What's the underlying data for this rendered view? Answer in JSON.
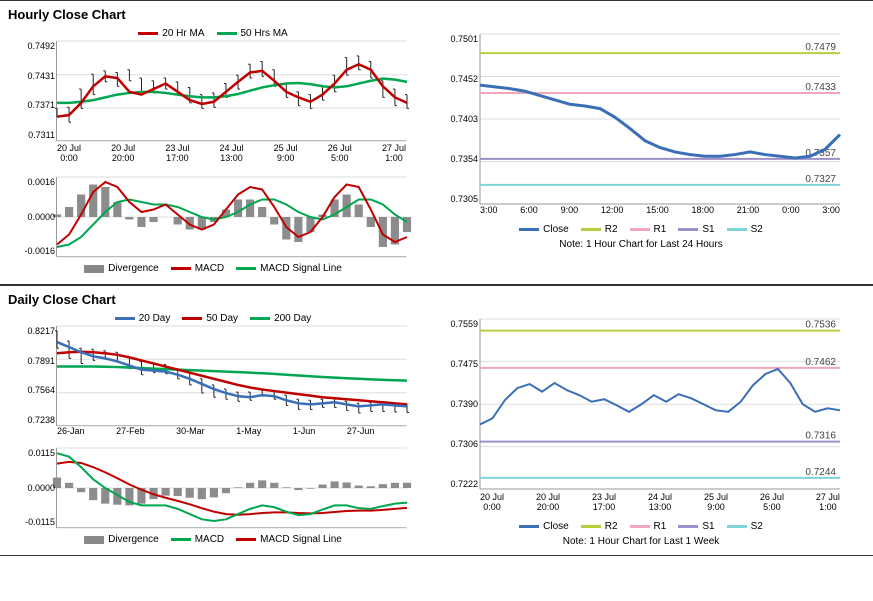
{
  "hourly": {
    "title": "Hourly Close Chart",
    "ma_chart": {
      "type": "line+candle",
      "ylim": [
        0.7311,
        0.7492
      ],
      "yticks": [
        "0.7492",
        "0.7431",
        "0.7371",
        "0.7311"
      ],
      "xticks": [
        "20 Jul\n0:00",
        "20 Jul\n20:00",
        "23 Jul\n17:00",
        "24 Jul\n13:00",
        "25 Jul\n9:00",
        "26 Jul\n5:00",
        "27 Jul\n1:00"
      ],
      "legend": [
        {
          "label": "20 Hr MA",
          "color": "#c00000",
          "type": "line"
        },
        {
          "label": "50 Hrs MA",
          "color": "#00a650",
          "type": "line"
        }
      ],
      "ma20": [
        0.7355,
        0.7358,
        0.738,
        0.741,
        0.7428,
        0.7425,
        0.74,
        0.7395,
        0.7405,
        0.7415,
        0.74,
        0.7385,
        0.7378,
        0.7382,
        0.74,
        0.7418,
        0.7435,
        0.7438,
        0.742,
        0.74,
        0.739,
        0.7382,
        0.7395,
        0.7415,
        0.744,
        0.745,
        0.744,
        0.741,
        0.739,
        0.738
      ],
      "ma50": [
        0.738,
        0.738,
        0.7382,
        0.7385,
        0.739,
        0.7395,
        0.7398,
        0.74,
        0.74,
        0.7398,
        0.7395,
        0.7392,
        0.739,
        0.739,
        0.7392,
        0.7396,
        0.7402,
        0.7408,
        0.7412,
        0.7415,
        0.7416,
        0.7414,
        0.741,
        0.7408,
        0.741,
        0.7415,
        0.742,
        0.7424,
        0.7422,
        0.7418
      ],
      "candles": [
        [
          0.7355,
          0.737
        ],
        [
          0.7345,
          0.7372
        ],
        [
          0.737,
          0.7405
        ],
        [
          0.7395,
          0.7432
        ],
        [
          0.7418,
          0.7438
        ],
        [
          0.741,
          0.7435
        ],
        [
          0.742,
          0.744
        ],
        [
          0.74,
          0.7425
        ],
        [
          0.7398,
          0.742
        ],
        [
          0.7405,
          0.7425
        ],
        [
          0.7395,
          0.7418
        ],
        [
          0.738,
          0.7408
        ],
        [
          0.737,
          0.7395
        ],
        [
          0.7372,
          0.7398
        ],
        [
          0.739,
          0.7415
        ],
        [
          0.7405,
          0.743
        ],
        [
          0.7425,
          0.745
        ],
        [
          0.7428,
          0.7455
        ],
        [
          0.741,
          0.744
        ],
        [
          0.739,
          0.7415
        ],
        [
          0.7375,
          0.74
        ],
        [
          0.737,
          0.7395
        ],
        [
          0.7385,
          0.7412
        ],
        [
          0.74,
          0.743
        ],
        [
          0.743,
          0.7462
        ],
        [
          0.744,
          0.7465
        ],
        [
          0.7425,
          0.7455
        ],
        [
          0.739,
          0.742
        ],
        [
          0.7375,
          0.7405
        ],
        [
          0.737,
          0.7395
        ]
      ],
      "candle_color": "#222",
      "grid_color": "#dcdcdc",
      "bg": "#ffffff"
    },
    "macd_chart": {
      "type": "macd",
      "ylim": [
        -0.0016,
        0.0016
      ],
      "yticks": [
        "0.0016",
        "0.0000",
        "-0.0016"
      ],
      "legend": [
        {
          "label": "Divergence",
          "color": "#888",
          "type": "bar"
        },
        {
          "label": "MACD",
          "color": "#c00000",
          "type": "line"
        },
        {
          "label": "MACD Signal Line",
          "color": "#00a650",
          "type": "line"
        }
      ],
      "macd": [
        -0.0011,
        -0.0007,
        0.0001,
        0.001,
        0.0014,
        0.0012,
        0.0006,
        0.0002,
        0.0003,
        0.0005,
        0.0001,
        -0.0003,
        -0.0005,
        -0.0003,
        0.0003,
        0.0009,
        0.0012,
        0.0011,
        0.0004,
        -0.0004,
        -0.0008,
        -0.0006,
        0.0,
        0.0008,
        0.0013,
        0.0012,
        0.0003,
        -0.0007,
        -0.001,
        -0.0008
      ],
      "signal": [
        -0.0012,
        -0.0011,
        -0.0008,
        -0.0003,
        0.0002,
        0.0006,
        0.0007,
        0.0006,
        0.0005,
        0.0005,
        0.0004,
        0.0002,
        0.0,
        -0.0001,
        0.0,
        0.0002,
        0.0005,
        0.0007,
        0.0007,
        0.0005,
        0.0002,
        0.0,
        -0.0001,
        0.0001,
        0.0004,
        0.0007,
        0.0007,
        0.0005,
        0.0001,
        -0.0002
      ],
      "divergence": [
        0.0001,
        0.0004,
        0.0009,
        0.0013,
        0.0012,
        0.0006,
        -0.0001,
        -0.0004,
        -0.0002,
        0.0,
        -0.0003,
        -0.0005,
        -0.0005,
        -0.0002,
        0.0003,
        0.0007,
        0.0007,
        0.0004,
        -0.0003,
        -0.0009,
        -0.001,
        -0.0006,
        0.0001,
        0.0007,
        0.0009,
        0.0005,
        -0.0004,
        -0.0012,
        -0.0011,
        -0.0006
      ],
      "bar_color": "#8c8c8c"
    },
    "pr_chart": {
      "type": "line+levels",
      "ylim": [
        0.7305,
        0.7501
      ],
      "yticks": [
        "0.7501",
        "0.7452",
        "0.7403",
        "0.7354",
        "0.7305"
      ],
      "xticks": [
        "3:00",
        "6:00",
        "9:00",
        "12:00",
        "15:00",
        "18:00",
        "21:00",
        "0:00",
        "3:00"
      ],
      "close": [
        0.7442,
        0.744,
        0.7438,
        0.7435,
        0.743,
        0.7425,
        0.742,
        0.7418,
        0.7415,
        0.7405,
        0.7392,
        0.7378,
        0.737,
        0.7365,
        0.7362,
        0.736,
        0.736,
        0.7362,
        0.7365,
        0.7362,
        0.736,
        0.7358,
        0.736,
        0.7368,
        0.7385
      ],
      "close_color": "#3a6fb7",
      "close_width": 3,
      "levels": [
        {
          "name": "R2",
          "value": 0.7479,
          "color": "#b5cf3f"
        },
        {
          "name": "R1",
          "value": 0.7433,
          "color": "#f0a8b8"
        },
        {
          "name": "S1",
          "value": 0.7357,
          "color": "#9e8fc7"
        },
        {
          "name": "S2",
          "value": 0.7327,
          "color": "#7fd4d9"
        }
      ],
      "legend": [
        {
          "label": "Close",
          "color": "#3a6fb7",
          "type": "line"
        },
        {
          "label": "R2",
          "color": "#b5cf3f",
          "type": "line"
        },
        {
          "label": "R1",
          "color": "#f0a8b8",
          "type": "line"
        },
        {
          "label": "S1",
          "color": "#9e8fc7",
          "type": "line"
        },
        {
          "label": "S2",
          "color": "#7fd4d9",
          "type": "line"
        }
      ],
      "note": "Note: 1 Hour Chart for Last 24 Hours"
    }
  },
  "daily": {
    "title": "Daily Close Chart",
    "ma_chart": {
      "type": "line+candle",
      "ylim": [
        0.7238,
        0.8217
      ],
      "yticks": [
        "0.8217",
        "0.7891",
        "0.7564",
        "0.7238"
      ],
      "xticks": [
        "26-Jan",
        "27-Feb",
        "30-Mar",
        "1-May",
        "1-Jun",
        "27-Jun",
        ""
      ],
      "legend": [
        {
          "label": "20 Day",
          "color": "#3a6fb7",
          "type": "line"
        },
        {
          "label": "50 Day",
          "color": "#c00000",
          "type": "line"
        },
        {
          "label": "200 Day",
          "color": "#00a650",
          "type": "line"
        }
      ],
      "ma20": [
        0.806,
        0.801,
        0.796,
        0.792,
        0.79,
        0.787,
        0.783,
        0.779,
        0.778,
        0.777,
        0.774,
        0.77,
        0.765,
        0.76,
        0.756,
        0.753,
        0.752,
        0.754,
        0.753,
        0.749,
        0.746,
        0.745,
        0.746,
        0.747,
        0.745,
        0.743,
        0.744,
        0.745,
        0.744,
        0.743
      ],
      "ma50": [
        0.795,
        0.796,
        0.7965,
        0.796,
        0.795,
        0.7935,
        0.791,
        0.788,
        0.785,
        0.782,
        0.779,
        0.776,
        0.773,
        0.77,
        0.767,
        0.764,
        0.7615,
        0.7595,
        0.758,
        0.7565,
        0.755,
        0.7535,
        0.752,
        0.751,
        0.75,
        0.749,
        0.748,
        0.747,
        0.746,
        0.745
      ],
      "ma200": [
        0.782,
        0.782,
        0.782,
        0.782,
        0.7818,
        0.7815,
        0.781,
        0.7805,
        0.78,
        0.7795,
        0.779,
        0.7785,
        0.778,
        0.7775,
        0.777,
        0.7765,
        0.776,
        0.7755,
        0.7748,
        0.774,
        0.7732,
        0.7725,
        0.7718,
        0.7712,
        0.7706,
        0.77,
        0.7695,
        0.769,
        0.7686,
        0.7682
      ],
      "candles": [
        [
          0.8,
          0.817
        ],
        [
          0.79,
          0.807
        ],
        [
          0.785,
          0.8
        ],
        [
          0.788,
          0.799
        ],
        [
          0.789,
          0.7975
        ],
        [
          0.787,
          0.796
        ],
        [
          0.78,
          0.792
        ],
        [
          0.774,
          0.787
        ],
        [
          0.776,
          0.786
        ],
        [
          0.775,
          0.784
        ],
        [
          0.77,
          0.78
        ],
        [
          0.764,
          0.776
        ],
        [
          0.756,
          0.77
        ],
        [
          0.752,
          0.764
        ],
        [
          0.75,
          0.76
        ],
        [
          0.748,
          0.757
        ],
        [
          0.749,
          0.757
        ],
        [
          0.753,
          0.76
        ],
        [
          0.75,
          0.758
        ],
        [
          0.744,
          0.754
        ],
        [
          0.74,
          0.75
        ],
        [
          0.74,
          0.749
        ],
        [
          0.742,
          0.75
        ],
        [
          0.742,
          0.751
        ],
        [
          0.739,
          0.748
        ],
        [
          0.7365,
          0.746
        ],
        [
          0.738,
          0.747
        ],
        [
          0.738,
          0.7475
        ],
        [
          0.7375,
          0.746
        ],
        [
          0.737,
          0.7455
        ]
      ]
    },
    "macd_chart": {
      "type": "macd",
      "ylim": [
        -0.0115,
        0.0115
      ],
      "yticks": [
        "0.0115",
        "0.0000",
        "-0.0115"
      ],
      "legend": [
        {
          "label": "Divergence",
          "color": "#888",
          "type": "bar"
        },
        {
          "label": "MACD",
          "color": "#00a650",
          "type": "line"
        },
        {
          "label": "MACD Signal Line",
          "color": "#c00000",
          "type": "line"
        }
      ],
      "macd": [
        0.01,
        0.009,
        0.006,
        0.0025,
        0.0,
        -0.002,
        -0.004,
        -0.005,
        -0.005,
        -0.005,
        -0.006,
        -0.0075,
        -0.009,
        -0.0095,
        -0.009,
        -0.0075,
        -0.006,
        -0.005,
        -0.0055,
        -0.0068,
        -0.0078,
        -0.0075,
        -0.0062,
        -0.005,
        -0.005,
        -0.0058,
        -0.006,
        -0.0052,
        -0.0045,
        -0.0042
      ],
      "signal": [
        0.007,
        0.0075,
        0.0072,
        0.006,
        0.0045,
        0.0028,
        0.001,
        -0.0005,
        -0.0018,
        -0.0028,
        -0.0037,
        -0.0047,
        -0.0058,
        -0.0068,
        -0.0075,
        -0.0077,
        -0.0075,
        -0.0072,
        -0.007,
        -0.007,
        -0.0072,
        -0.0073,
        -0.0072,
        -0.0069,
        -0.0066,
        -0.0065,
        -0.0065,
        -0.0063,
        -0.006,
        -0.0057
      ],
      "divergence": [
        0.003,
        0.0015,
        -0.0012,
        -0.0035,
        -0.0045,
        -0.0048,
        -0.005,
        -0.0045,
        -0.0032,
        -0.0022,
        -0.0023,
        -0.0028,
        -0.0032,
        -0.0027,
        -0.0015,
        0.0002,
        0.0015,
        0.0022,
        0.0015,
        0.0002,
        -0.0006,
        -0.0002,
        0.001,
        0.0019,
        0.0016,
        0.0007,
        0.0005,
        0.0011,
        0.0015,
        0.0015
      ]
    },
    "pr_chart": {
      "type": "line+levels",
      "ylim": [
        0.7222,
        0.7559
      ],
      "yticks": [
        "0.7559",
        "0.7475",
        "0.7390",
        "0.7306",
        "0.7222"
      ],
      "xticks": [
        "20 Jul\n0:00",
        "20 Jul\n20:00",
        "23 Jul\n17:00",
        "24 Jul\n13:00",
        "25 Jul\n9:00",
        "26 Jul\n5:00",
        "27 Jul\n1:00"
      ],
      "close": [
        0.735,
        0.7362,
        0.7398,
        0.7422,
        0.743,
        0.7415,
        0.7432,
        0.7418,
        0.7408,
        0.7395,
        0.74,
        0.7388,
        0.7375,
        0.739,
        0.7408,
        0.7395,
        0.741,
        0.7402,
        0.739,
        0.7378,
        0.7375,
        0.7395,
        0.7428,
        0.745,
        0.746,
        0.7432,
        0.739,
        0.7375,
        0.7382,
        0.7378
      ],
      "close_color": "#3a6fb7",
      "close_width": 2,
      "levels": [
        {
          "name": "R2",
          "value": 0.7536,
          "color": "#b5cf3f"
        },
        {
          "name": "R1",
          "value": 0.7462,
          "color": "#f0a8b8"
        },
        {
          "name": "S1",
          "value": 0.7316,
          "color": "#9e8fc7"
        },
        {
          "name": "S2",
          "value": 0.7244,
          "color": "#7fd4d9"
        }
      ],
      "legend": [
        {
          "label": "Close",
          "color": "#3a6fb7",
          "type": "line"
        },
        {
          "label": "R2",
          "color": "#b5cf3f",
          "type": "line"
        },
        {
          "label": "R1",
          "color": "#f0a8b8",
          "type": "line"
        },
        {
          "label": "S1",
          "color": "#9e8fc7",
          "type": "line"
        },
        {
          "label": "S2",
          "color": "#7fd4d9",
          "type": "line"
        }
      ],
      "note": "Note: 1 Hour Chart for Last 1 Week"
    }
  },
  "dims": {
    "ma_w": 350,
    "ma_h": 100,
    "macd_w": 350,
    "macd_h": 80,
    "pr_w": 360,
    "pr_h": 170
  }
}
